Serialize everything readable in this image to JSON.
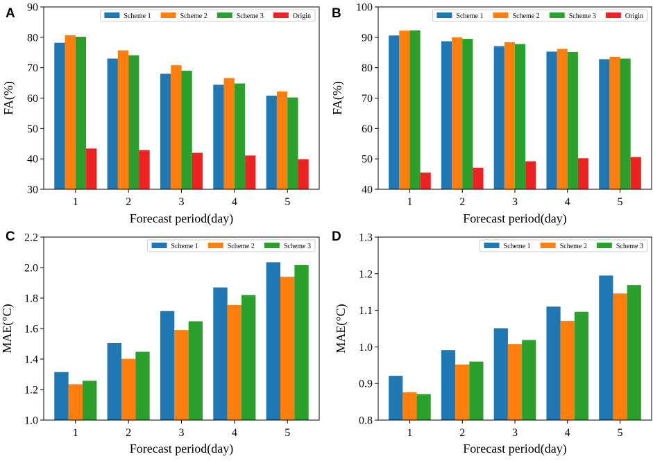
{
  "colors": {
    "Scheme 1": "#1f77b4",
    "Scheme 2": "#ff7f0e",
    "Scheme 3": "#2ca02c",
    "Origin": "#ee2222"
  },
  "chart_data": [
    {
      "panel": "A",
      "type": "bar",
      "xlabel": "Forecast period(day)",
      "ylabel": "FA(%)",
      "categories": [
        "1",
        "2",
        "3",
        "4",
        "5"
      ],
      "ylim": [
        30,
        90
      ],
      "yticks": [
        "30",
        "40",
        "50",
        "60",
        "70",
        "80",
        "90"
      ],
      "grid": false,
      "legend": "top-right",
      "series": [
        {
          "name": "Scheme 1",
          "values": [
            78.2,
            73.0,
            68.0,
            64.4,
            60.8
          ]
        },
        {
          "name": "Scheme 2",
          "values": [
            80.7,
            75.7,
            70.8,
            66.6,
            62.2
          ]
        },
        {
          "name": "Scheme 3",
          "values": [
            80.2,
            74.1,
            69.0,
            64.8,
            60.2
          ]
        },
        {
          "name": "Origin",
          "values": [
            43.4,
            42.9,
            42.0,
            41.1,
            39.9
          ]
        }
      ]
    },
    {
      "panel": "B",
      "type": "bar",
      "xlabel": "Forecast period(day)",
      "ylabel": "FA(%)",
      "categories": [
        "1",
        "2",
        "3",
        "4",
        "5"
      ],
      "ylim": [
        40,
        100
      ],
      "yticks": [
        "40",
        "50",
        "60",
        "70",
        "80",
        "90",
        "100"
      ],
      "grid": false,
      "legend": "top-right",
      "series": [
        {
          "name": "Scheme 1",
          "values": [
            90.6,
            88.7,
            87.1,
            85.3,
            82.8
          ]
        },
        {
          "name": "Scheme 2",
          "values": [
            92.2,
            90.0,
            88.4,
            86.2,
            83.6
          ]
        },
        {
          "name": "Scheme 3",
          "values": [
            92.3,
            89.5,
            87.8,
            85.2,
            83.0
          ]
        },
        {
          "name": "Origin",
          "values": [
            45.5,
            47.1,
            49.2,
            50.2,
            50.6
          ]
        }
      ]
    },
    {
      "panel": "C",
      "type": "bar",
      "xlabel": "Forecast period(day)",
      "ylabel": "MAE(°C)",
      "categories": [
        "1",
        "2",
        "3",
        "4",
        "5"
      ],
      "ylim": [
        1.0,
        2.2
      ],
      "yticks": [
        "1.0",
        "1.2",
        "1.4",
        "1.6",
        "1.8",
        "2.0",
        "2.2"
      ],
      "grid": false,
      "legend": "top-right",
      "series": [
        {
          "name": "Scheme 1",
          "values": [
            1.315,
            1.505,
            1.715,
            1.87,
            2.035
          ]
        },
        {
          "name": "Scheme 2",
          "values": [
            1.235,
            1.402,
            1.59,
            1.755,
            1.94
          ]
        },
        {
          "name": "Scheme 3",
          "values": [
            1.258,
            1.448,
            1.648,
            1.82,
            2.018
          ]
        }
      ]
    },
    {
      "panel": "D",
      "type": "bar",
      "xlabel": "Forecast period(day)",
      "ylabel": "MAE(°C)",
      "categories": [
        "1",
        "2",
        "3",
        "4",
        "5"
      ],
      "ylim": [
        0.8,
        1.3
      ],
      "yticks": [
        "0.8",
        "0.9",
        "1.0",
        "1.1",
        "1.2",
        "1.3"
      ],
      "grid": false,
      "legend": "top-right",
      "series": [
        {
          "name": "Scheme 1",
          "values": [
            0.921,
            0.991,
            1.051,
            1.11,
            1.195
          ]
        },
        {
          "name": "Scheme 2",
          "values": [
            0.876,
            0.952,
            1.008,
            1.071,
            1.146
          ]
        },
        {
          "name": "Scheme 3",
          "values": [
            0.871,
            0.96,
            1.019,
            1.096,
            1.169
          ]
        }
      ]
    }
  ]
}
